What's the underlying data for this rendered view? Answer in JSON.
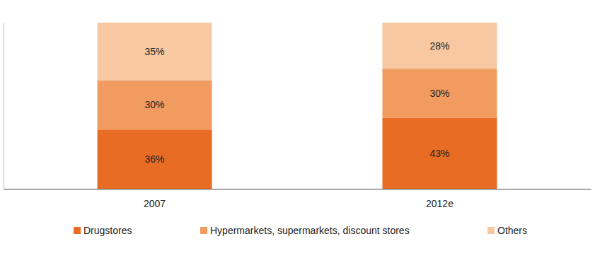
{
  "chart_data": {
    "type": "bar",
    "stacked": true,
    "data_labels": true,
    "tick_labels": "x",
    "legend": "bottom",
    "categories": [
      "2007",
      "2012e"
    ],
    "ylim": [
      0,
      101
    ],
    "series": [
      {
        "name": "Drugstores",
        "color": "#e96c25",
        "values": [
          36,
          43
        ],
        "value_labels": [
          "36%",
          "43%"
        ]
      },
      {
        "name": "Hypermarkets, supermarkets, discount stores",
        "color": "#f29b60",
        "values": [
          30,
          30
        ],
        "value_labels": [
          "30%",
          "30%"
        ]
      },
      {
        "name": "Others",
        "color": "#f8c8a3",
        "values": [
          35,
          28
        ],
        "value_labels": [
          "35%",
          "28%"
        ]
      }
    ]
  }
}
